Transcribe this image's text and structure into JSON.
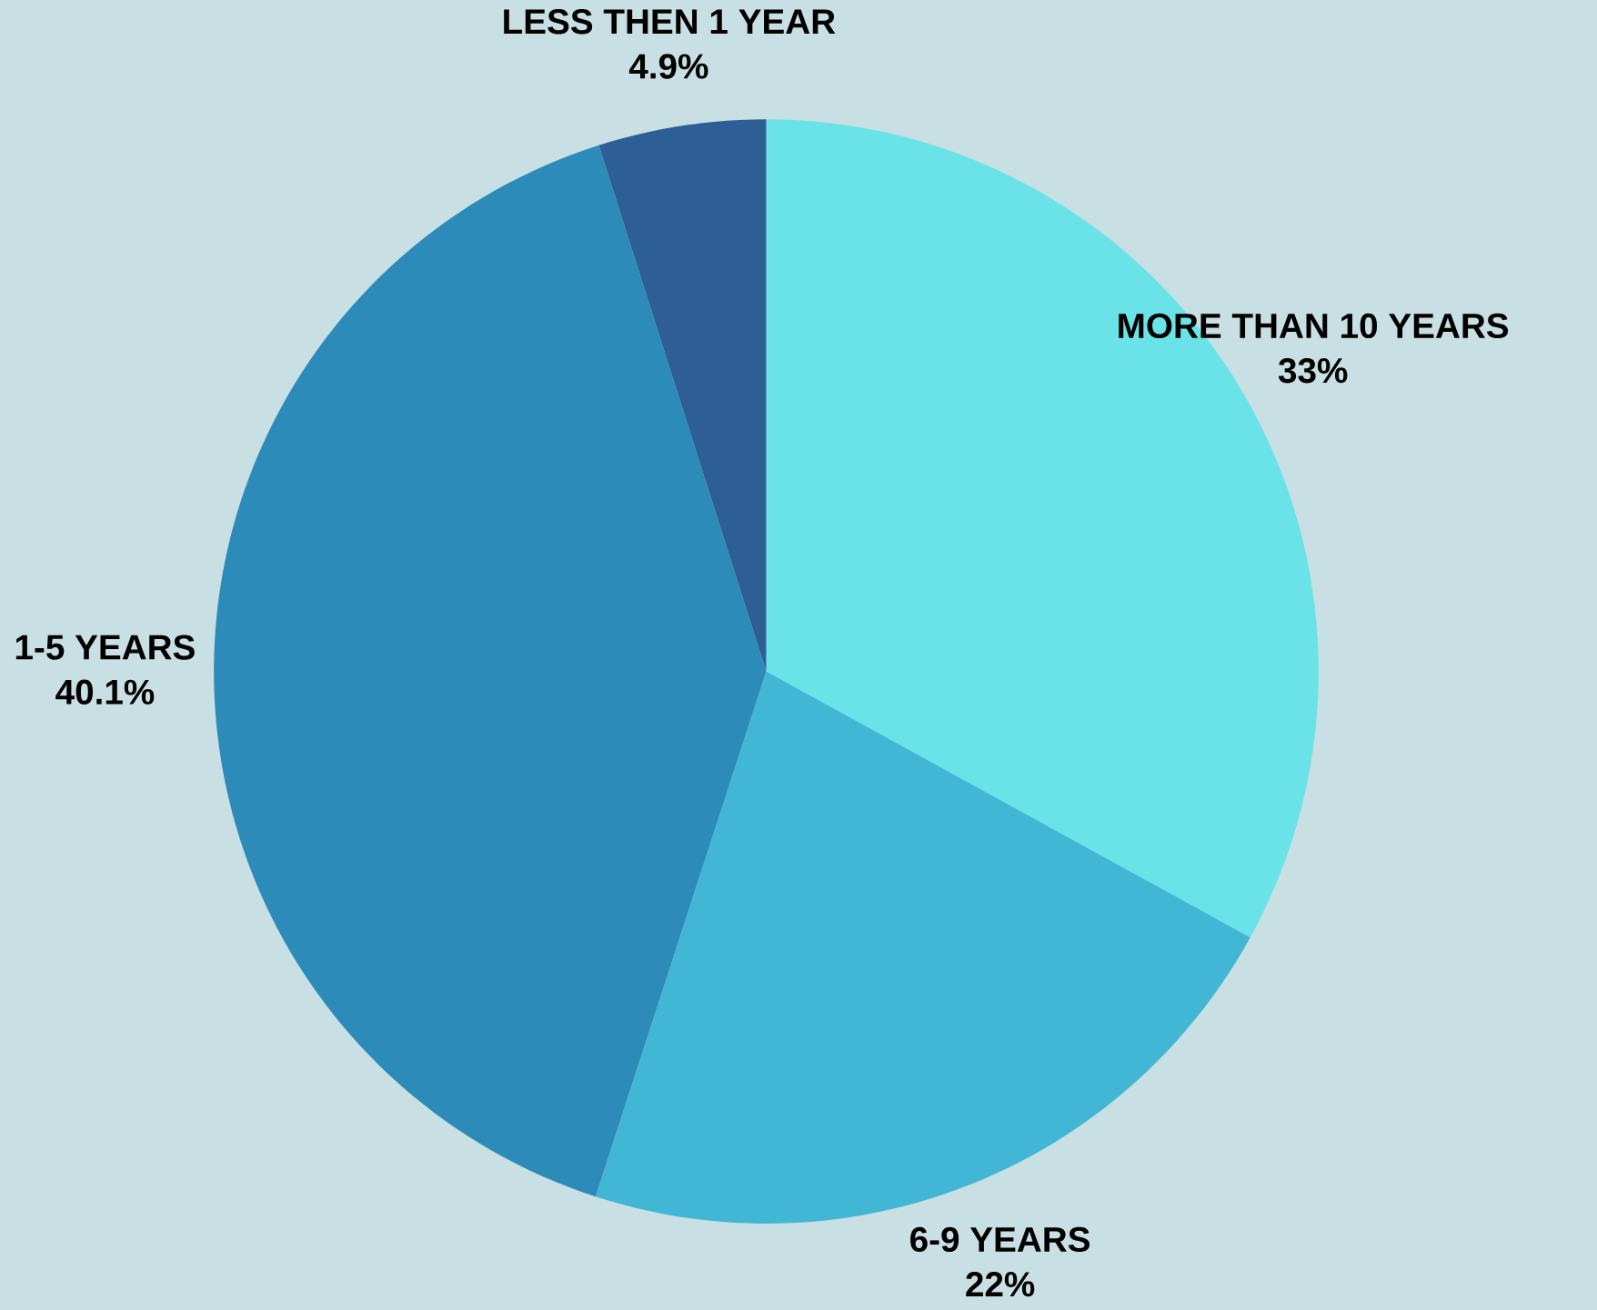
{
  "chart_data": {
    "type": "pie",
    "categories": [
      "MORE THAN 10 YEARS",
      "6-9 YEARS",
      "1-5 YEARS",
      "LESS THEN 1 YEAR"
    ],
    "values": [
      33,
      22,
      40.1,
      4.9
    ],
    "value_labels": [
      "33%",
      "22%",
      "40.1%",
      "4.9%"
    ],
    "colors": [
      "#6ae3e8",
      "#42b6d5",
      "#2d8bb9",
      "#2d5f96"
    ],
    "legend": false
  }
}
